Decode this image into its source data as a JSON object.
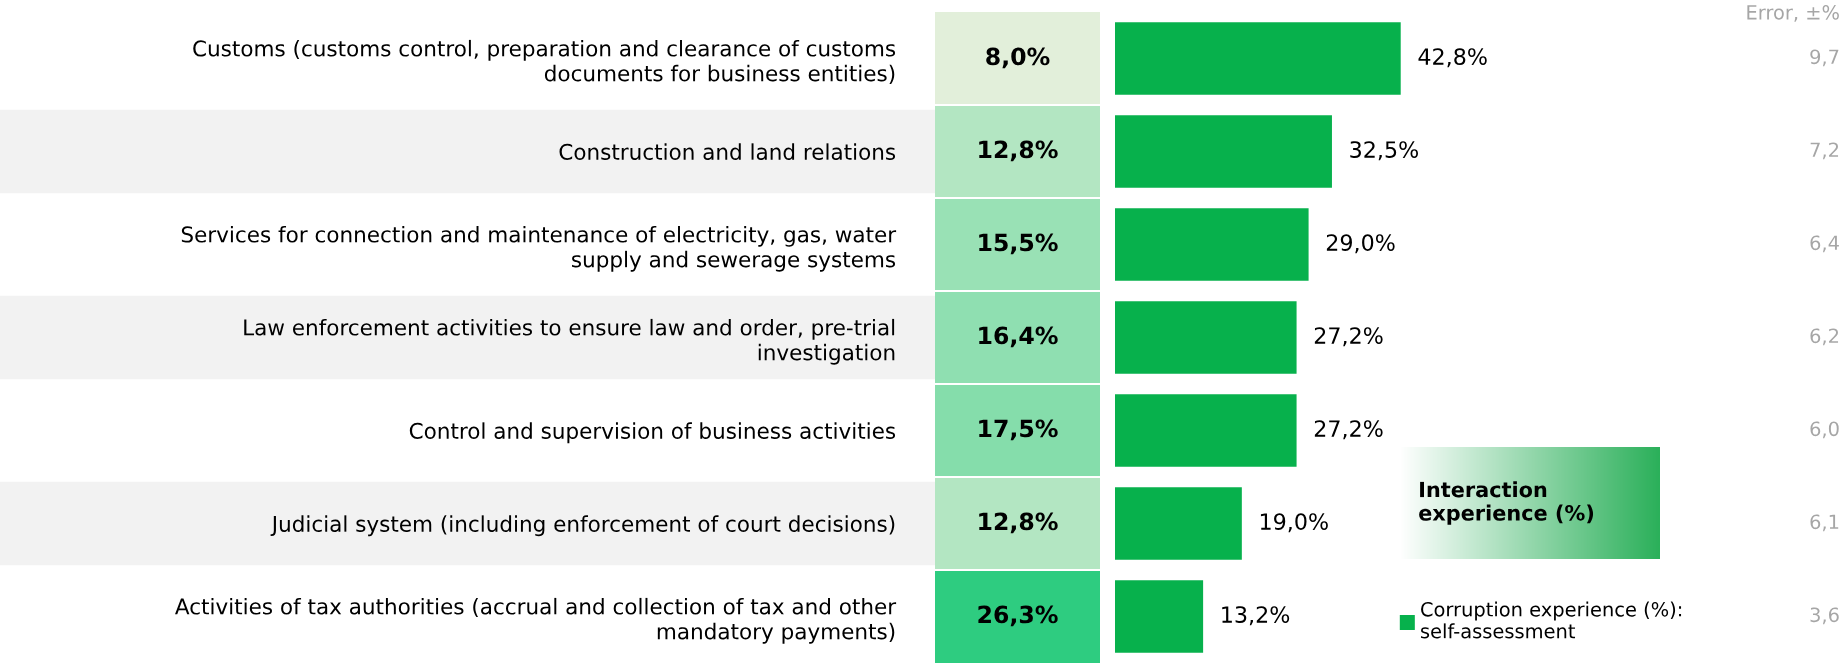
{
  "chart_data": [
    {
      "type": "heatmap",
      "categories": [
        null
      ],
      "y_categories": [
        "Customs (customs control, preparation and clearance of customs\ndocuments for business entities)",
        "Construction and land relations",
        "Services for connection and maintenance of electricity, gas, water\nsupply and sewerage systems",
        "Law enforcement activities to ensure law and order, pre-trial\ninvestigation",
        "Control and supervision of business activities",
        "Judicial system (including enforcement of court decisions)",
        "Activities of tax authorities (accrual and collection of tax and other\nmandatory payments)"
      ],
      "cells": [
        [
          8.0
        ],
        [
          12.8
        ],
        [
          15.5
        ],
        [
          16.4
        ],
        [
          17.5
        ],
        [
          12.8
        ],
        [
          26.3
        ]
      ],
      "cell_labels": [
        [
          "8,0%"
        ],
        [
          "12,8%"
        ],
        [
          "15,5%"
        ],
        [
          "16,4%"
        ],
        [
          "17,5%"
        ],
        [
          "12,8%"
        ],
        [
          "26,3%"
        ]
      ],
      "clabel": "Interaction experience (%)"
    },
    {
      "type": "bar",
      "orientation": "horizontal",
      "categories": [
        null,
        null,
        null,
        null,
        null,
        null,
        null
      ],
      "series": [
        {
          "name": "Corruption experience (%):\nself-assessment",
          "color": "#07b14c",
          "values": [
            42.8,
            32.5,
            29.0,
            27.2,
            27.2,
            19.0,
            13.2
          ],
          "value_labels": [
            "42,8%",
            "32,5%",
            "29,0%",
            "27,2%",
            "27,2%",
            "19,0%",
            "13,2%"
          ]
        }
      ],
      "tick_labels": false,
      "legend": "bottom right"
    },
    {
      "type": "other",
      "title": "Error, ±%",
      "annotations": [
        "9,7",
        "7,2",
        "6,4",
        "6,2",
        "6,0",
        "6,1",
        "3,6"
      ]
    }
  ]
}
